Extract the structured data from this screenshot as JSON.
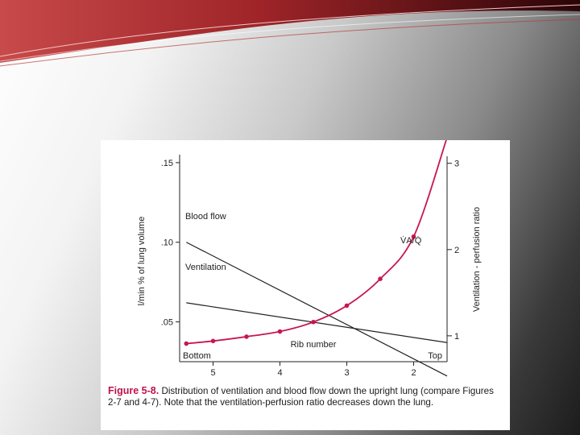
{
  "colors": {
    "banner_dark": "#3a0a10",
    "banner_red": "#c0282e",
    "curve": "#c8174f",
    "line": "#222222",
    "caption_label": "#c0124a"
  },
  "caption": {
    "label": "Figure 5-8.",
    "text": " Distribution of ventilation and blood flow down the upright lung (compare Figures 2-7 and 4-7). Note that the ventilation-perfusion ratio decreases down the lung."
  },
  "chart_data": {
    "type": "line",
    "xlabel": "Rib number",
    "x_end_labels": [
      "Bottom",
      "Top"
    ],
    "x_ticks": [
      5,
      4,
      3,
      2
    ],
    "xlim": [
      5.5,
      1.5
    ],
    "ylabel_left": "l/min % of lung volume",
    "y_ticks_left": [
      ".05",
      ".10",
      ".15"
    ],
    "ylim_left": [
      0.025,
      0.155
    ],
    "ylabel_right": "Ventilation - perfusion ratio",
    "y_ticks_right": [
      1,
      2,
      3
    ],
    "ylim_right": [
      0.7,
      3.1
    ],
    "grid": false,
    "series": [
      {
        "name": "Blood flow",
        "axis": "left",
        "style": "line",
        "x": [
          5.4,
          1.5
        ],
        "y": [
          0.1,
          0.016
        ]
      },
      {
        "name": "Ventilation",
        "axis": "left",
        "style": "line",
        "x": [
          5.4,
          1.5
        ],
        "y": [
          0.062,
          0.037
        ]
      },
      {
        "name": "V̇A/Q̇",
        "axis": "right",
        "style": "line-markers",
        "x": [
          5.4,
          5.0,
          4.5,
          4.0,
          3.5,
          3.0,
          2.5,
          2.0,
          1.5
        ],
        "y": [
          0.91,
          0.94,
          0.99,
          1.05,
          1.16,
          1.35,
          1.66,
          2.15,
          3.3
        ]
      }
    ]
  }
}
